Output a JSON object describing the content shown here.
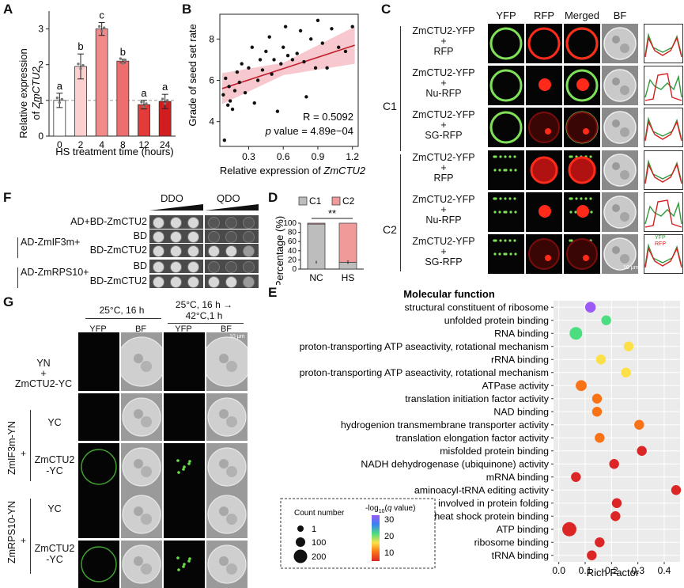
{
  "panels": {
    "a": "A",
    "b": "B",
    "c": "C",
    "d": "D",
    "e": "E",
    "f": "F",
    "g": "G"
  },
  "chart_data": [
    {
      "id": "A",
      "type": "bar",
      "ylabel_prefix": "Relative expression",
      "ylabel_gene": "ZmCTU2",
      "ylabel_of": "of",
      "xlabel": "HS treatment time (hours)",
      "categories": [
        "0",
        "2",
        "4",
        "8",
        "12",
        "24"
      ],
      "values": [
        1.0,
        1.95,
        3.0,
        2.1,
        0.88,
        0.97
      ],
      "errors": [
        0.2,
        0.35,
        0.18,
        0.05,
        0.12,
        0.2
      ],
      "letters": [
        "a",
        "b",
        "c",
        "b",
        "a",
        "a"
      ],
      "colors": [
        "#ffffff",
        "#fdd0d0",
        "#f28a8a",
        "#ee6e6e",
        "#e33a3a",
        "#d11d1d"
      ],
      "ylim": [
        0,
        3.5
      ],
      "yticks": [
        "0",
        "1",
        "2",
        "3"
      ],
      "reference_line": 1.0
    },
    {
      "id": "B",
      "type": "scatter",
      "ylabel": "Grade of seed set rate",
      "xlabel_prefix": "Relative expression of",
      "xlabel_gene": "ZmCTU2",
      "xticks": [
        "0.3",
        "0.6",
        "0.9",
        "1.2"
      ],
      "yticks": [
        "4",
        "6",
        "8"
      ],
      "xlim": [
        0.05,
        1.25
      ],
      "ylim": [
        2.8,
        9.2
      ],
      "r_text": "R = 0.5092",
      "p_label": "p",
      "p_text": "value = 4.89e−04",
      "fit": {
        "x0": 0.07,
        "y0": 5.6,
        "x1": 1.22,
        "y1": 7.7
      },
      "points": [
        [
          0.08,
          5.3
        ],
        [
          0.09,
          3.1
        ],
        [
          0.1,
          6.1
        ],
        [
          0.12,
          4.8
        ],
        [
          0.13,
          5.7
        ],
        [
          0.14,
          5.0
        ],
        [
          0.16,
          4.6
        ],
        [
          0.18,
          5.5
        ],
        [
          0.2,
          6.4
        ],
        [
          0.22,
          5.9
        ],
        [
          0.24,
          6.8
        ],
        [
          0.27,
          5.4
        ],
        [
          0.3,
          6.6
        ],
        [
          0.33,
          7.6
        ],
        [
          0.35,
          4.9
        ],
        [
          0.38,
          6.0
        ],
        [
          0.4,
          7.0
        ],
        [
          0.42,
          6.5
        ],
        [
          0.45,
          7.4
        ],
        [
          0.48,
          8.1
        ],
        [
          0.5,
          6.3
        ],
        [
          0.52,
          7.0
        ],
        [
          0.55,
          4.5
        ],
        [
          0.58,
          6.8
        ],
        [
          0.6,
          7.6
        ],
        [
          0.62,
          8.6
        ],
        [
          0.64,
          7.2
        ],
        [
          0.68,
          7.0
        ],
        [
          0.72,
          7.3
        ],
        [
          0.75,
          8.4
        ],
        [
          0.78,
          6.9
        ],
        [
          0.8,
          5.2
        ],
        [
          0.84,
          8.0
        ],
        [
          0.88,
          6.6
        ],
        [
          0.9,
          8.9
        ],
        [
          0.94,
          7.8
        ],
        [
          0.98,
          6.6
        ],
        [
          1.02,
          8.5
        ],
        [
          1.08,
          7.6
        ],
        [
          1.14,
          7.4
        ],
        [
          1.2,
          8.6
        ]
      ]
    },
    {
      "id": "D",
      "type": "bar",
      "ylabel": "Percentage (%)",
      "categories": [
        "NC",
        "HS"
      ],
      "series": [
        {
          "name": "C1",
          "values": [
            98,
            15
          ],
          "color": "#bdbdbd"
        },
        {
          "name": "C2",
          "values": [
            2,
            85
          ],
          "color": "#f19a9a"
        }
      ],
      "ylim": [
        0,
        100
      ],
      "yticks": [
        "0",
        "20",
        "40",
        "60",
        "80",
        "100"
      ],
      "sig": "**"
    },
    {
      "id": "E",
      "type": "scatter",
      "title": "Molecular function",
      "xlabel": "Rich Factor",
      "xticks": [
        "0.0",
        "0.1",
        "0.2",
        "0.3",
        "0.4"
      ],
      "xlim": [
        -0.02,
        0.46
      ],
      "terms": [
        {
          "label": "structural constituent of ribosome",
          "x": 0.12,
          "count": 60,
          "q": 33
        },
        {
          "label": "unfolded protein binding",
          "x": 0.18,
          "count": 40,
          "q": 22
        },
        {
          "label": "RNA binding",
          "x": 0.065,
          "count": 130,
          "q": 21
        },
        {
          "label": "proton-transporting ATP aseactivity, rotational mechanism",
          "x": 0.265,
          "count": 40,
          "q": 19
        },
        {
          "label": "rRNA binding",
          "x": 0.16,
          "count": 40,
          "q": 17
        },
        {
          "label": "proton-transporting ATP aseactivity, rotational mechanism",
          "x": 0.255,
          "count": 40,
          "q": 17
        },
        {
          "label": "ATPase activity",
          "x": 0.085,
          "count": 70,
          "q": 15
        },
        {
          "label": "translation initiation factor activity",
          "x": 0.145,
          "count": 40,
          "q": 13
        },
        {
          "label": "NAD binding",
          "x": 0.145,
          "count": 40,
          "q": 12
        },
        {
          "label": "hydrogenion transmembrane transporter activity",
          "x": 0.305,
          "count": 40,
          "q": 11
        },
        {
          "label": "translation elongation factor activity",
          "x": 0.155,
          "count": 40,
          "q": 10
        },
        {
          "label": "misfolded protein binding",
          "x": 0.315,
          "count": 40,
          "q": 9
        },
        {
          "label": "NADH dehydrogenase (ubiquinone) activity",
          "x": 0.21,
          "count": 40,
          "q": 9
        },
        {
          "label": "mRNA binding",
          "x": 0.065,
          "count": 40,
          "q": 8
        },
        {
          "label": "aminoacyl-tRNA editing activity",
          "x": 0.445,
          "count": 40,
          "q": 8
        },
        {
          "label": "protein binding involved in protein folding",
          "x": 0.22,
          "count": 40,
          "q": 8
        },
        {
          "label": "heat shock protein binding",
          "x": 0.215,
          "count": 40,
          "q": 8
        },
        {
          "label": "ATP binding",
          "x": 0.04,
          "count": 200,
          "q": 7
        },
        {
          "label": "ribosome binding",
          "x": 0.155,
          "count": 40,
          "q": 7
        },
        {
          "label": "tRNA binding",
          "x": 0.125,
          "count": 40,
          "q": 7
        }
      ],
      "legend": {
        "count_title": "Count number",
        "counts": [
          "1",
          "100",
          "200"
        ],
        "q_title_a": "-log",
        "q_title_sub": "10",
        "q_title_b": "(",
        "q_title_q": "q",
        "q_title_c": " value)",
        "q_ticks": [
          "30",
          "20",
          "10"
        ],
        "gradient": [
          "#9b59f5",
          "#3b82f6",
          "#4ade80",
          "#fde047",
          "#f97316",
          "#dc2626"
        ]
      }
    }
  ],
  "panel_c": {
    "headers": [
      "YFP",
      "RFP",
      "Merged",
      "BF"
    ],
    "group_labels": [
      "C1",
      "C2"
    ],
    "rows": [
      {
        "l1": "ZmCTU2-YFP",
        "l2": "+",
        "l3": "RFP"
      },
      {
        "l1": "ZmCTU2-YFP",
        "l2": "+",
        "l3": "Nu-RFP"
      },
      {
        "l1": "ZmCTU2-YFP",
        "l2": "+",
        "l3": "SG-RFP"
      },
      {
        "l1": "ZmCTU2-YFP",
        "l2": "+",
        "l3": "RFP"
      },
      {
        "l1": "ZmCTU2-YFP",
        "l2": "+",
        "l3": "Nu-RFP"
      },
      {
        "l1": "ZmCTU2-YFP",
        "l2": "+",
        "l3": "SG-RFP"
      }
    ],
    "scale": "10 μm",
    "legend_yfp": "YFP",
    "legend_rfp": "RFP"
  },
  "panel_f": {
    "col_ddo": "DDO",
    "col_qdo": "QDO",
    "rows": [
      {
        "group": "",
        "label": "AD+BD-ZmCTU2"
      },
      {
        "group": "AD-ZmIF3m+",
        "label": "BD"
      },
      {
        "group": "",
        "label": "BD-ZmCTU2"
      },
      {
        "group": "AD-ZmRPS10+",
        "label": "BD"
      },
      {
        "group": "",
        "label": "BD-ZmCTU2"
      }
    ]
  },
  "panel_g": {
    "cond1": "25°C, 16 h",
    "cond2_l1": "25°C, 16 h →",
    "cond2_l2": "42°C,1 h",
    "sub": [
      "YFP",
      "BF",
      "YFP",
      "BF"
    ],
    "scale": "10 μm",
    "row1_l1": "YN",
    "row1_l2": "+",
    "row1_l3": "ZmCTU2-YC",
    "group1": "ZmIF3m-YN",
    "group2": "ZmRPS10-YN",
    "plus": "+",
    "yc": "YC",
    "ctu_l1": "ZmCTU2",
    "ctu_l2": "-YC"
  }
}
